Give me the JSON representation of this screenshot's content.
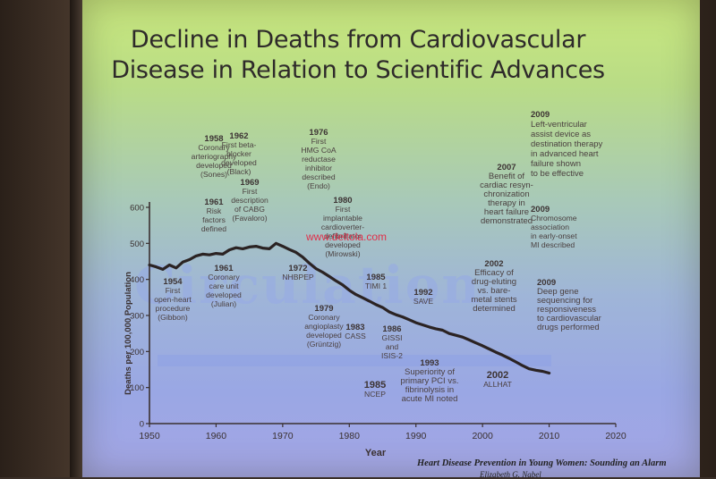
{
  "title": {
    "line1": "Decline in Deaths from Cardiovascular",
    "line2": "Disease in Relation to Scientific Advances"
  },
  "watermark": "Circulation",
  "site_watermark": "www.deltola.com",
  "footer": {
    "line1": "Heart Disease Prevention in Young Women: Sounding an Alarm",
    "line2": "Elizabeth G. Nabel"
  },
  "chart_data": {
    "type": "line",
    "title": "Decline in Deaths from Cardiovascular Disease in Relation to Scientific Advances",
    "xlabel": "Year",
    "ylabel": "Deaths per 100,000 Population",
    "xlim": [
      1950,
      2020
    ],
    "ylim": [
      0,
      600
    ],
    "x_ticks": [
      1950,
      1960,
      1970,
      1980,
      1990,
      2000,
      2010,
      2020
    ],
    "y_ticks": [
      0,
      100,
      200,
      300,
      400,
      500,
      600
    ],
    "series": [
      {
        "x": [
          1950,
          1951,
          1952,
          1953,
          1954,
          1955,
          1956,
          1957,
          1958,
          1959,
          1960,
          1961,
          1962,
          1963,
          1964,
          1965,
          1966,
          1967,
          1968,
          1969,
          1970,
          1971,
          1972,
          1973,
          1974,
          1975,
          1976,
          1977,
          1978,
          1979,
          1980,
          1981,
          1982,
          1983,
          1984,
          1985,
          1986,
          1987,
          1988,
          1989,
          1990,
          1991,
          1992,
          1993,
          1994,
          1995,
          1996,
          1997,
          1998,
          1999,
          2000,
          2001,
          2002,
          2003,
          2004,
          2005,
          2006,
          2007,
          2008,
          2009,
          2010
        ],
        "y": [
          440,
          435,
          428,
          440,
          432,
          448,
          455,
          465,
          470,
          468,
          472,
          470,
          482,
          488,
          485,
          490,
          492,
          487,
          485,
          500,
          492,
          483,
          475,
          462,
          445,
          430,
          420,
          408,
          396,
          385,
          370,
          358,
          349,
          340,
          330,
          322,
          310,
          302,
          296,
          288,
          280,
          274,
          268,
          263,
          259,
          250,
          245,
          240,
          232,
          224,
          216,
          207,
          198,
          190,
          181,
          171,
          161,
          152,
          148,
          145,
          140
        ]
      }
    ],
    "annotations": [
      {
        "year": "1954",
        "text": [
          "First",
          "open-heart",
          "procedure",
          "(Gibbon)"
        ]
      },
      {
        "year": "1958",
        "text": [
          "Coronary",
          "arteriography",
          "developed",
          "(Sones)"
        ]
      },
      {
        "year": "1961",
        "text": [
          "Risk",
          "factors",
          "defined"
        ]
      },
      {
        "year": "1961",
        "text": [
          "Coronary",
          "care unit",
          "developed",
          "(Julian)"
        ]
      },
      {
        "year": "1962",
        "text": [
          "First beta-",
          "blocker",
          "developed",
          "(Black)"
        ]
      },
      {
        "year": "1969",
        "text": [
          "First",
          "description",
          "of CABG",
          "(Favaloro)"
        ]
      },
      {
        "year": "1972",
        "text": [
          "NHBPEP"
        ]
      },
      {
        "year": "1976",
        "text": [
          "First",
          "HMG CoA",
          "reductase",
          "inhibitor",
          "described",
          "(Endo)"
        ]
      },
      {
        "year": "1980",
        "text": [
          "First",
          "implantable",
          "cardioverter-",
          "defibrillator",
          "developed",
          "(Mirowski)"
        ]
      },
      {
        "year": "1979",
        "text": [
          "Coronary",
          "angioplasty",
          "developed",
          "(Grüntzig)"
        ]
      },
      {
        "year": "1983",
        "text": [
          "CASS"
        ]
      },
      {
        "year": "1985",
        "text": [
          "TIMI 1"
        ]
      },
      {
        "year": "1985",
        "text": [
          "NCEP"
        ]
      },
      {
        "year": "1986",
        "text": [
          "GISSI",
          "and",
          "ISIS-2"
        ]
      },
      {
        "year": "1992",
        "text": [
          "SAVE"
        ]
      },
      {
        "year": "1993",
        "text": [
          "Superiority of",
          "primary PCI vs.",
          "fibrinolysis in",
          "acute MI noted"
        ]
      },
      {
        "year": "2002",
        "text": [
          "Efficacy of",
          "drug-eluting",
          "vs. bare-",
          "metal stents",
          "determined"
        ]
      },
      {
        "year": "2002",
        "text": [
          "ALLHAT"
        ]
      },
      {
        "year": "2007",
        "text": [
          "Benefit of",
          "cardiac resyn-",
          "chronization",
          "therapy in",
          "heart failure",
          "demonstrated"
        ]
      },
      {
        "year": "2009",
        "text": [
          "Left-ventricular",
          "assist device as",
          "destination therapy",
          "in advanced heart",
          "failure shown",
          "to be effective"
        ]
      },
      {
        "year": "2009",
        "text": [
          "Chromosome",
          "association",
          "in early-onset",
          "MI described"
        ]
      },
      {
        "year": "2009",
        "text": [
          "Deep gene",
          "sequencing for",
          "responsiveness",
          "to cardiovascular",
          "drugs performed"
        ]
      }
    ]
  }
}
